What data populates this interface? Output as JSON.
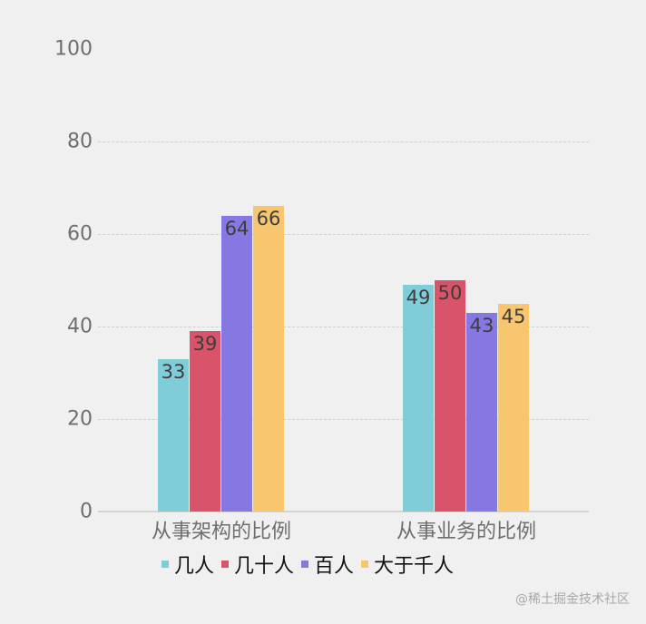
{
  "chart_data": {
    "type": "bar",
    "title": "",
    "xlabel": "",
    "ylabel": "",
    "ylim": [
      0,
      100
    ],
    "yticks": [
      0,
      20,
      40,
      60,
      80,
      100
    ],
    "grid": true,
    "legend_position": "bottom",
    "categories": [
      "从事架构的比例",
      "从事业务的比例"
    ],
    "series": [
      {
        "name": "几人",
        "color": "#7ecdd8",
        "values": [
          33,
          49
        ]
      },
      {
        "name": "几十人",
        "color": "#d9546a",
        "values": [
          39,
          50
        ]
      },
      {
        "name": "百人",
        "color": "#8578e2",
        "values": [
          64,
          43
        ]
      },
      {
        "name": "大于千人",
        "color": "#f7c66e",
        "values": [
          66,
          45
        ]
      }
    ]
  },
  "yaxis": {
    "ticks": [
      "0",
      "20",
      "40",
      "60",
      "80",
      "100"
    ]
  },
  "watermark": "@稀土掘金技术社区"
}
